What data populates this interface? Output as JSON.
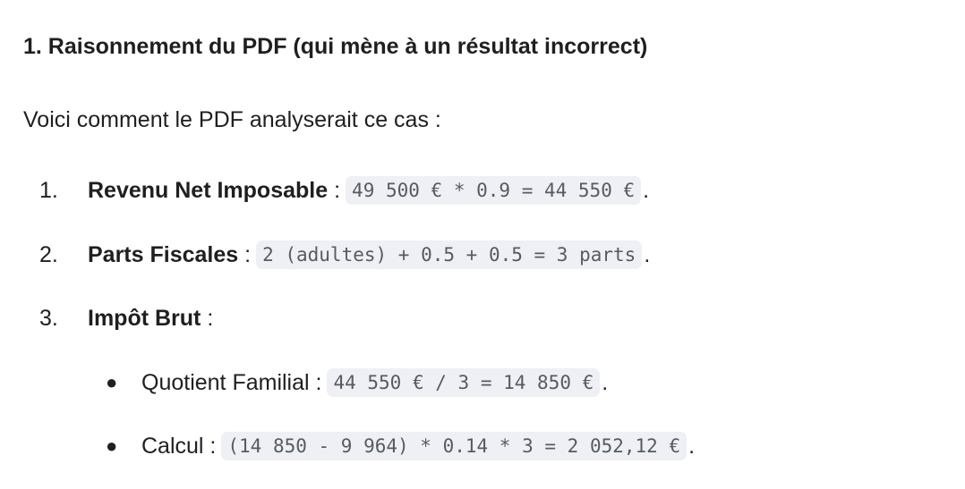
{
  "heading": "1. Raisonnement du PDF (qui mène à un résultat incorrect)",
  "intro": "Voici comment le PDF analyserait ce cas :",
  "steps": [
    {
      "num": "1.",
      "label": "Revenu Net Imposable",
      "sep": " :",
      "code": "49 500 € * 0.9 = 44 550 €",
      "end": "."
    },
    {
      "num": "2.",
      "label": "Parts Fiscales",
      "sep": " :",
      "code": "2 (adultes) + 0.5 + 0.5 = 3 parts",
      "end": "."
    },
    {
      "num": "3.",
      "label": "Impôt Brut",
      "sep": " :"
    }
  ],
  "bullets": [
    {
      "label": "Quotient Familial :",
      "code": "44 550 € / 3 = 14 850 €",
      "end": "."
    },
    {
      "label": "Calcul :",
      "code": "(14 850 - 9 964) * 0.14 * 3 = 2 052,12 €",
      "end": "."
    }
  ]
}
